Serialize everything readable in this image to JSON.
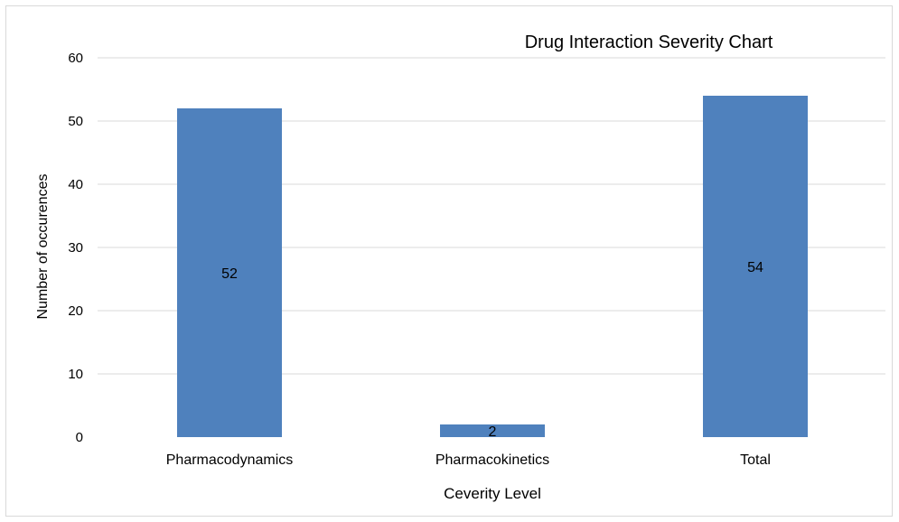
{
  "chart_data": {
    "type": "bar",
    "title": "Drug Interaction Severity Chart",
    "xlabel": "Ceverity Level",
    "ylabel": "Number of occurences",
    "categories": [
      "Pharmacodynamics",
      "Pharmacokinetics",
      "Total"
    ],
    "values": [
      52,
      2,
      54
    ],
    "data_labels": [
      "52",
      "2",
      "54"
    ],
    "ylim": [
      0,
      60
    ],
    "yticks": [
      0,
      10,
      20,
      30,
      40,
      50,
      60
    ],
    "grid": true,
    "legend": "none",
    "colors": {
      "bar": "#4f81bd",
      "grid": "#d9d9d9",
      "text": "#000000"
    }
  }
}
